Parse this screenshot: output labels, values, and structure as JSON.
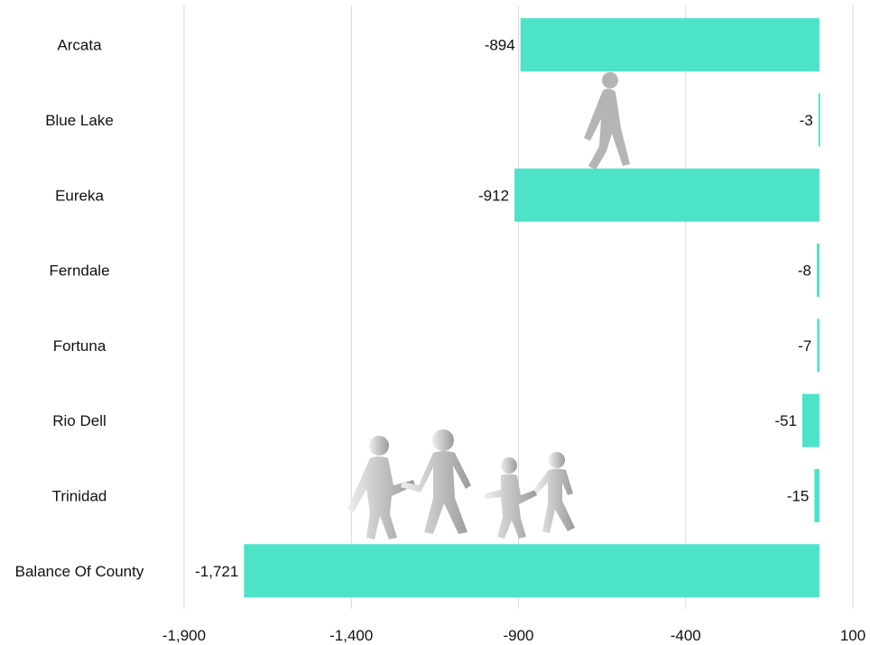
{
  "chart_data": {
    "type": "bar",
    "orientation": "horizontal",
    "categories": [
      "Arcata",
      "Blue Lake",
      "Eureka",
      "Ferndale",
      "Fortuna",
      "Rio Dell",
      "Trinidad",
      "Balance Of County"
    ],
    "values": [
      -894,
      -3,
      -912,
      -8,
      -7,
      -51,
      -15,
      -1721
    ],
    "value_labels": [
      "-894",
      "-3",
      "-912",
      "-8",
      "-7",
      "-51",
      "-15",
      "-1,721"
    ],
    "xlim": [
      -1900,
      100
    ],
    "xticks": [
      -1900,
      -1400,
      -900,
      -400,
      100
    ],
    "xtick_labels": [
      "-1,900",
      "-1,400",
      "-900",
      "-400",
      "100"
    ],
    "grid": "vertical",
    "legend": "none",
    "bar_color": "#4de3c9",
    "decorations": [
      "walking-person-icon",
      "family-walking-icon"
    ]
  }
}
